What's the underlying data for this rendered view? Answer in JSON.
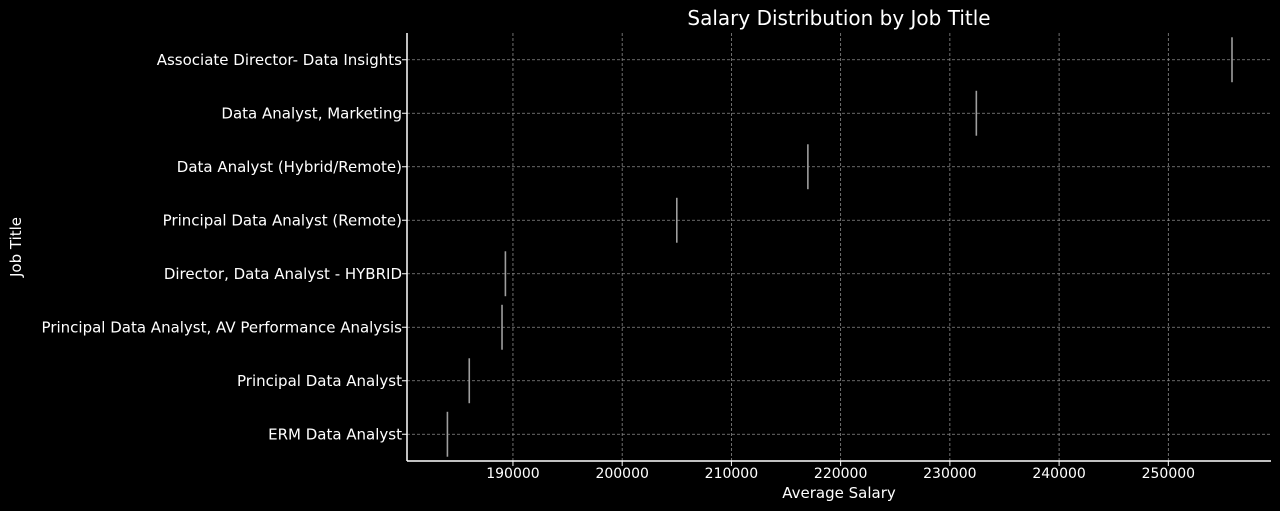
{
  "chart_data": {
    "type": "box",
    "orientation": "horizontal",
    "title": "Salary Distribution by Job Title",
    "xlabel": "Average Salary",
    "ylabel": "Job Title",
    "categories": [
      "Associate Director- Data Insights",
      "Data Analyst, Marketing",
      "Data Analyst (Hybrid/Remote)",
      "Principal Data Analyst (Remote)",
      "Director, Data Analyst - HYBRID",
      "Principal Data Analyst, AV Performance Analysis",
      "Principal Data Analyst",
      "ERM Data Analyst"
    ],
    "values": [
      255829.5,
      232423.0,
      217000.0,
      205000.0,
      189309.0,
      189000.0,
      186000.0,
      184000.0
    ],
    "xlim": [
      180300,
      259400
    ],
    "xticks": [
      190000,
      200000,
      210000,
      220000,
      230000,
      240000,
      250000
    ],
    "xtick_labels": [
      "190000",
      "200000",
      "210000",
      "220000",
      "230000",
      "240000",
      "250000"
    ],
    "grid": true,
    "colors": {
      "background": "#000000",
      "text": "#ffffff",
      "grid": "#8a8a8a",
      "marker": "#9e9e9e",
      "axis": "#ffffff"
    }
  }
}
